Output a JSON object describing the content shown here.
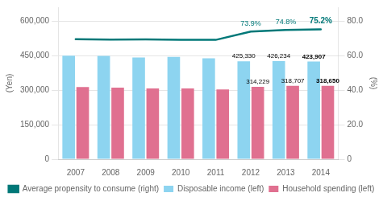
{
  "chart_data": {
    "type": "bar",
    "categories": [
      "2007",
      "2008",
      "2009",
      "2010",
      "2011",
      "2012",
      "2013",
      "2014"
    ],
    "series": [
      {
        "name": "Disposable income (left)",
        "color": "#8DD4F0",
        "values": [
          450000,
          449000,
          442000,
          444000,
          438000,
          425330,
          426234,
          423907
        ],
        "value_labels": [
          null,
          null,
          null,
          null,
          null,
          "425,330",
          "426,234",
          "423,907"
        ]
      },
      {
        "name": "Household spending (left)",
        "color": "#E07090",
        "values": [
          313000,
          311000,
          307000,
          307000,
          303000,
          314229,
          318707,
          318650
        ],
        "value_labels": [
          null,
          null,
          null,
          null,
          null,
          "314,229",
          "318,707",
          "318,650"
        ]
      },
      {
        "name": "Average propensity to consume (right)",
        "color": "#007878",
        "type": "line",
        "axis": "y2",
        "values": [
          69.5,
          69.3,
          69.4,
          69.2,
          69.1,
          73.9,
          74.8,
          75.2
        ],
        "value_labels": [
          null,
          null,
          null,
          null,
          null,
          "73.9%",
          "74.8%",
          "75.2%"
        ]
      }
    ],
    "ylabel": "(Yen)",
    "y2label": "(%)",
    "ylim": [
      0,
      660000
    ],
    "yticks": [
      0,
      {
        "value": 150000,
        "label": "150,000"
      },
      {
        "value": 300000,
        "label": "300,000"
      },
      {
        "value": 450000,
        "label": "450,000"
      },
      {
        "value": 600000,
        "label": "600,000"
      }
    ],
    "y2lim": [
      0,
      88.0
    ],
    "y2ticks": [
      0,
      {
        "value": 20,
        "label": "20.0"
      },
      {
        "value": 40,
        "label": "40.0"
      },
      {
        "value": 60,
        "label": "60.0"
      },
      {
        "value": 80,
        "label": "80.0"
      }
    ],
    "grid": true,
    "legend": "bottom",
    "data_labels": true
  }
}
